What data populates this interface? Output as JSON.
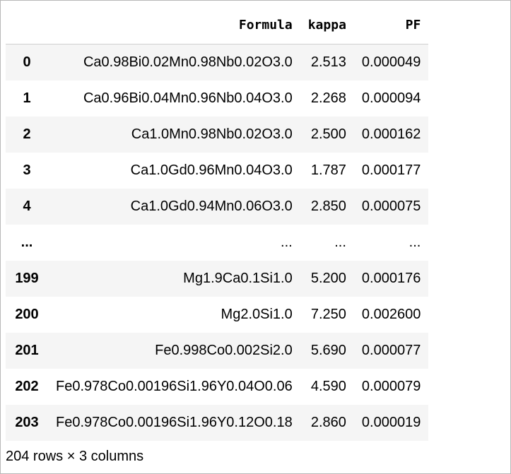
{
  "table": {
    "index_header": "",
    "columns": [
      "Formula",
      "kappa",
      "PF"
    ],
    "rows": [
      {
        "index": "0",
        "Formula": "Ca0.98Bi0.02Mn0.98Nb0.02O3.0",
        "kappa": "2.513",
        "PF": "0.000049"
      },
      {
        "index": "1",
        "Formula": "Ca0.96Bi0.04Mn0.96Nb0.04O3.0",
        "kappa": "2.268",
        "PF": "0.000094"
      },
      {
        "index": "2",
        "Formula": "Ca1.0Mn0.98Nb0.02O3.0",
        "kappa": "2.500",
        "PF": "0.000162"
      },
      {
        "index": "3",
        "Formula": "Ca1.0Gd0.96Mn0.04O3.0",
        "kappa": "1.787",
        "PF": "0.000177"
      },
      {
        "index": "4",
        "Formula": "Ca1.0Gd0.94Mn0.06O3.0",
        "kappa": "2.850",
        "PF": "0.000075"
      },
      {
        "index": "...",
        "Formula": "...",
        "kappa": "...",
        "PF": "..."
      },
      {
        "index": "199",
        "Formula": "Mg1.9Ca0.1Si1.0",
        "kappa": "5.200",
        "PF": "0.000176"
      },
      {
        "index": "200",
        "Formula": "Mg2.0Si1.0",
        "kappa": "7.250",
        "PF": "0.002600"
      },
      {
        "index": "201",
        "Formula": "Fe0.998Co0.002Si2.0",
        "kappa": "5.690",
        "PF": "0.000077"
      },
      {
        "index": "202",
        "Formula": "Fe0.978Co0.00196Si1.96Y0.04O0.06",
        "kappa": "4.590",
        "PF": "0.000079"
      },
      {
        "index": "203",
        "Formula": "Fe0.978Co0.00196Si1.96Y0.12O0.18",
        "kappa": "2.860",
        "PF": "0.000019"
      }
    ]
  },
  "shape_text": "204 rows × 3 columns"
}
